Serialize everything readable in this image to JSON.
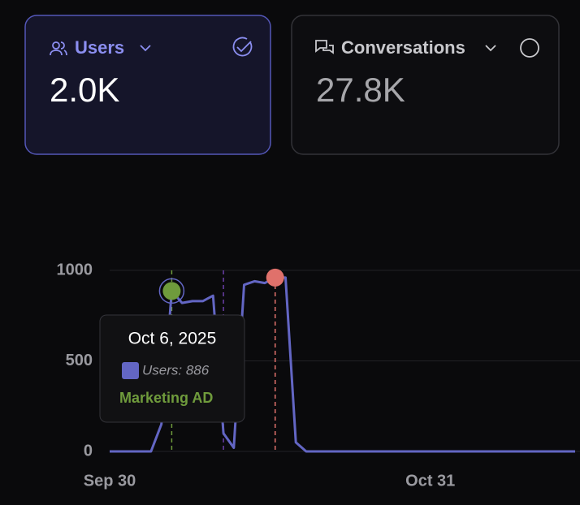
{
  "cards": [
    {
      "label": "Users",
      "value": "2.0K",
      "selected": true
    },
    {
      "label": "Conversations",
      "value": "27.8K",
      "selected": false
    }
  ],
  "chart_data": {
    "type": "line",
    "x": [
      "2025-09-30",
      "2025-10-01",
      "2025-10-02",
      "2025-10-03",
      "2025-10-04",
      "2025-10-05",
      "2025-10-06",
      "2025-10-07",
      "2025-10-08",
      "2025-10-09",
      "2025-10-10",
      "2025-10-11",
      "2025-10-12",
      "2025-10-13",
      "2025-10-14",
      "2025-10-15",
      "2025-10-16",
      "2025-10-17",
      "2025-10-18",
      "2025-10-19",
      "2025-10-20",
      "2025-10-21",
      "2025-10-22",
      "2025-10-23",
      "2025-10-24",
      "2025-10-25",
      "2025-10-26",
      "2025-10-27",
      "2025-10-28",
      "2025-10-29",
      "2025-10-30",
      "2025-10-31",
      "2025-11-01",
      "2025-11-02",
      "2025-11-03",
      "2025-11-04",
      "2025-11-05",
      "2025-11-06",
      "2025-11-07",
      "2025-11-08",
      "2025-11-09",
      "2025-11-10",
      "2025-11-11",
      "2025-11-12",
      "2025-11-13",
      "2025-11-14"
    ],
    "series": [
      {
        "name": "Users",
        "color": "#6366c4",
        "values": [
          0,
          0,
          0,
          0,
          0,
          150,
          886,
          820,
          830,
          830,
          860,
          100,
          20,
          920,
          940,
          930,
          960,
          960,
          50,
          0,
          0,
          0,
          0,
          0,
          0,
          0,
          0,
          0,
          0,
          0,
          0,
          0,
          0,
          0,
          0,
          0,
          0,
          0,
          0,
          0,
          0,
          0,
          0,
          0,
          0,
          0
        ]
      }
    ],
    "xlim": [
      "2025-09-30",
      "2025-11-14"
    ],
    "xticks": [
      {
        "value": "2025-09-30",
        "label": "Sep 30"
      },
      {
        "value": "2025-10-31",
        "label": "Oct 31"
      }
    ],
    "ylim": [
      0,
      1000
    ],
    "yticks": [
      0,
      500,
      1000
    ],
    "grid": true,
    "annotations": [
      {
        "x": "2025-10-06",
        "label": "Marketing AD",
        "color": "#6f9b3c",
        "marker": true
      },
      {
        "x": "2025-10-11",
        "color": "#6a3fa8",
        "marker": false
      },
      {
        "x": "2025-10-16",
        "color": "#e0716b",
        "marker": true
      }
    ],
    "tooltip": {
      "date": "Oct 6,  2025",
      "label": "Users: 886",
      "annotation": "Marketing AD"
    }
  }
}
